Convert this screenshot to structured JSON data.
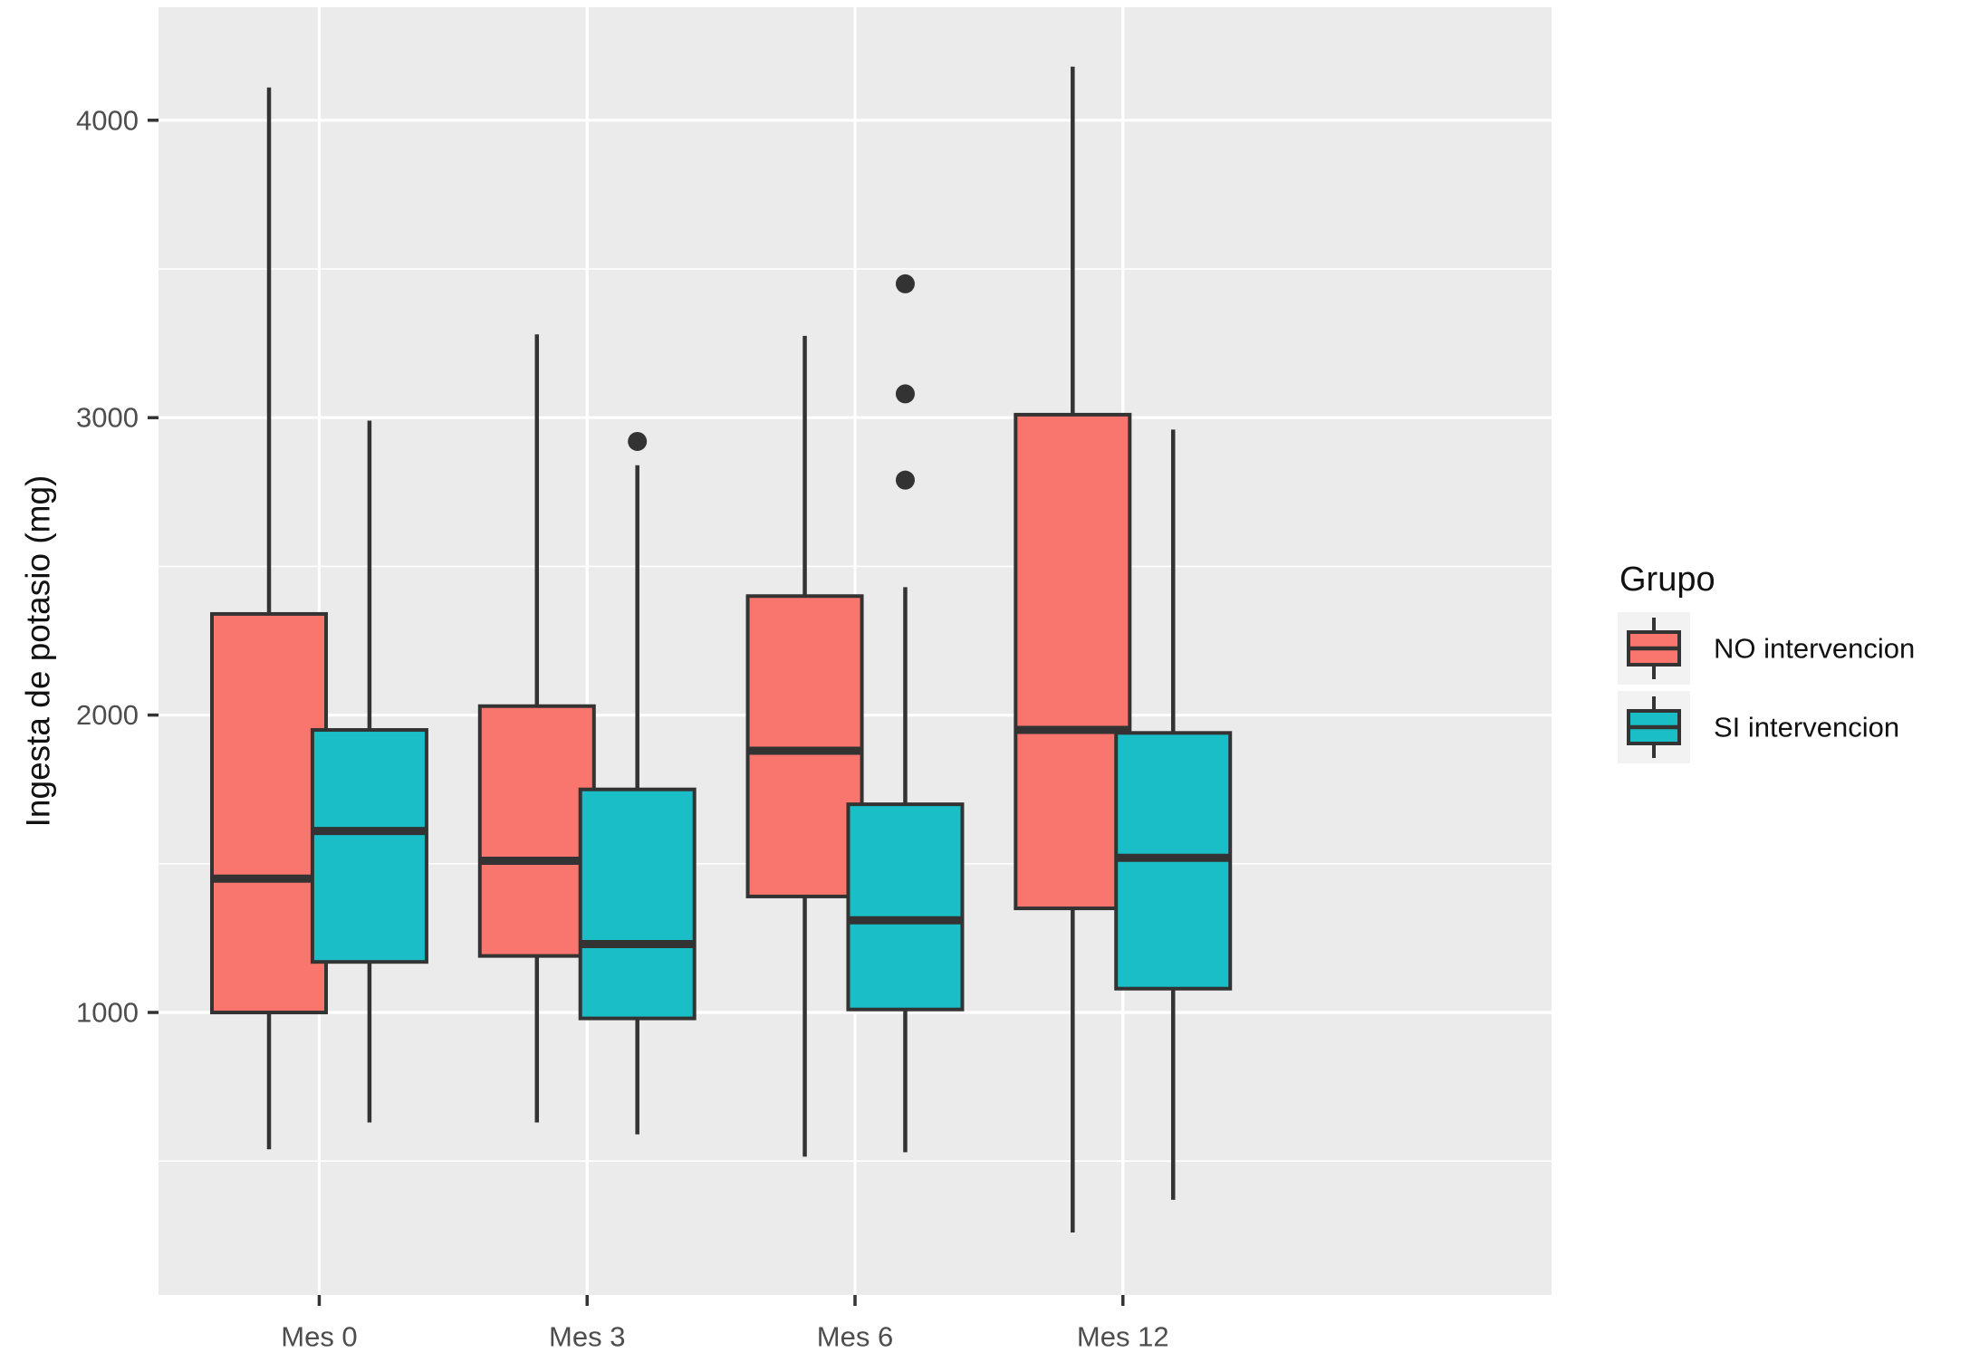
{
  "figure": {
    "y_axis_title": "Ingesta de potasio (mg)"
  },
  "legend": {
    "title": "Grupo",
    "entries": [
      {
        "label": "NO intervencion",
        "color": "#F8766D"
      },
      {
        "label": "SI intervencion",
        "color": "#1ABEC6"
      }
    ]
  },
  "colors": {
    "panel_background": "#EBEBEB",
    "gridline": "#FFFFFF",
    "box_border": "#333333",
    "outlier": "#333333",
    "tick_label": "#4D4D4D",
    "axis_title": "#111111",
    "legend_key_background": "#F2F2F2",
    "series_no_intervencion": "#F8766D",
    "series_si_intervencion": "#1ABEC6"
  },
  "chart_data": {
    "type": "boxplot",
    "title": "",
    "xlabel": "",
    "ylabel": "Ingesta de potasio (mg)",
    "categories": [
      "Mes 0",
      "Mes 3",
      "Mes 6",
      "Mes 12"
    ],
    "ylim": [
      50,
      4380
    ],
    "yticks": [
      1000,
      2000,
      3000,
      4000
    ],
    "ytick_labels": [
      "1000",
      "2000",
      "3000",
      "4000"
    ],
    "yticks_minor": [
      500,
      1500,
      2500,
      3500
    ],
    "grid": true,
    "legend_position": "right",
    "legend_title": "Grupo",
    "series": [
      {
        "name": "NO intervencion",
        "color": "#F8766D",
        "boxes": [
          {
            "category": "Mes 0",
            "whisker_low": 540,
            "q1": 1000,
            "median": 1450,
            "q3": 2340,
            "whisker_high": 4110,
            "outliers": []
          },
          {
            "category": "Mes 3",
            "whisker_low": 630,
            "q1": 1190,
            "median": 1510,
            "q3": 2030,
            "whisker_high": 3280,
            "outliers": []
          },
          {
            "category": "Mes 6",
            "whisker_low": 515,
            "q1": 1390,
            "median": 1880,
            "q3": 2400,
            "whisker_high": 3275,
            "outliers": []
          },
          {
            "category": "Mes 12",
            "whisker_low": 260,
            "q1": 1350,
            "median": 1950,
            "q3": 3010,
            "whisker_high": 4180,
            "outliers": []
          }
        ]
      },
      {
        "name": "SI intervencion",
        "color": "#1ABEC6",
        "boxes": [
          {
            "category": "Mes 0",
            "whisker_low": 630,
            "q1": 1170,
            "median": 1610,
            "q3": 1950,
            "whisker_high": 2990,
            "outliers": []
          },
          {
            "category": "Mes 3",
            "whisker_low": 590,
            "q1": 980,
            "median": 1230,
            "q3": 1750,
            "whisker_high": 2840,
            "outliers": [
              2920
            ]
          },
          {
            "category": "Mes 6",
            "whisker_low": 530,
            "q1": 1010,
            "median": 1310,
            "q3": 1700,
            "whisker_high": 2430,
            "outliers": [
              3450,
              3080,
              2790
            ]
          },
          {
            "category": "Mes 12",
            "whisker_low": 370,
            "q1": 1080,
            "median": 1520,
            "q3": 1940,
            "whisker_high": 2960,
            "outliers": []
          }
        ]
      }
    ]
  }
}
